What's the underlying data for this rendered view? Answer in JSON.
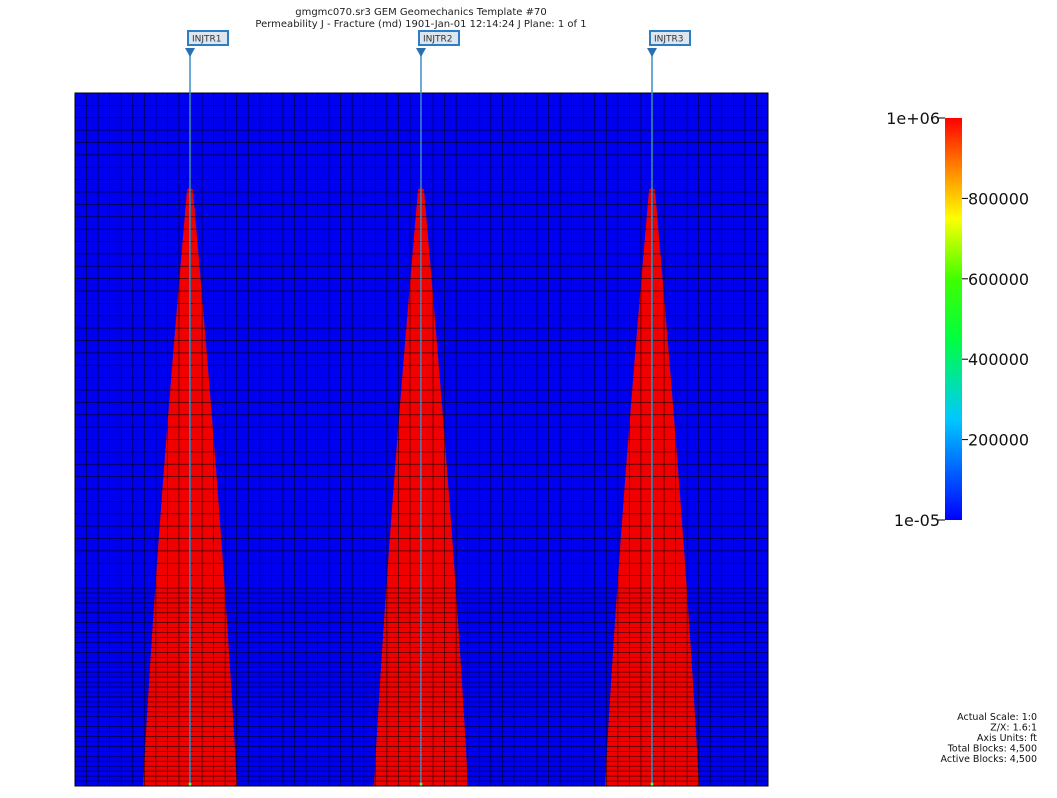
{
  "header": {
    "title": "gmgmc070.sr3 GEM Geomechanics Template #70",
    "subtitle": "Permeability J - Fracture (md)  1901-Jan-01 12:14:24   J Plane: 1 of 1"
  },
  "wells": [
    {
      "label": "INJTR1"
    },
    {
      "label": "INJTR2"
    },
    {
      "label": "INJTR3"
    }
  ],
  "colorbar": {
    "labels": [
      "1e+06",
      "800000",
      "600000",
      "400000",
      "200000",
      "1e-05"
    ]
  },
  "info": [
    "Actual Scale: 1:0",
    "Z/X: 1.6:1",
    "Axis Units: ft",
    "Total Blocks: 4,500",
    "Active Blocks: 4,500"
  ]
}
